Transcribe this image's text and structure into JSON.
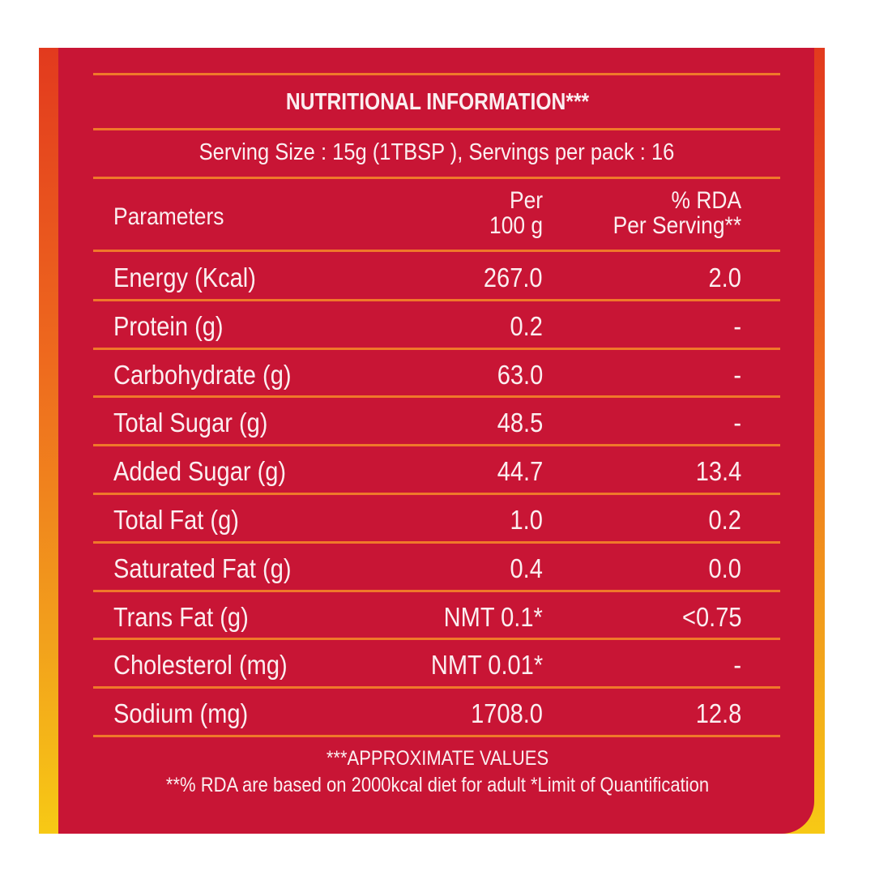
{
  "title": "NUTRITIONAL INFORMATION***",
  "serving": "Serving Size : 15g (1TBSP ),  Servings per pack : 16",
  "headers": {
    "parameter": "Parameters",
    "per100_line1": "Per",
    "per100_line2": "100 g",
    "rda_line1": "% RDA",
    "rda_line2": "Per Serving**"
  },
  "rows": [
    {
      "label": "Energy (Kcal)",
      "per100": "267.0",
      "rda": "2.0"
    },
    {
      "label": "Protein (g)",
      "per100": "0.2",
      "rda": "-"
    },
    {
      "label": "Carbohydrate (g)",
      "per100": "63.0",
      "rda": "-"
    },
    {
      "label": "Total Sugar (g)",
      "per100": "48.5",
      "rda": "-"
    },
    {
      "label": "Added Sugar (g)",
      "per100": "44.7",
      "rda": "13.4"
    },
    {
      "label": "Total Fat (g)",
      "per100": "1.0",
      "rda": "0.2"
    },
    {
      "label": "Saturated Fat (g)",
      "per100": "0.4",
      "rda": "0.0"
    },
    {
      "label": "Trans Fat (g)",
      "per100": "NMT 0.1*",
      "rda": "<0.75"
    },
    {
      "label": "Cholesterol (mg)",
      "per100": "NMT 0.01*",
      "rda": "-"
    },
    {
      "label": "Sodium (mg)",
      "per100": "1708.0",
      "rda": "12.8"
    }
  ],
  "footnotes": {
    "line1": "***APPROXIMATE VALUES",
    "line2": "**% RDA are based on 2000kcal diet for adult *Limit of Quantification"
  },
  "colors": {
    "panel": "#c81535",
    "rule": "#f0782a",
    "text": "#fbeef0"
  }
}
